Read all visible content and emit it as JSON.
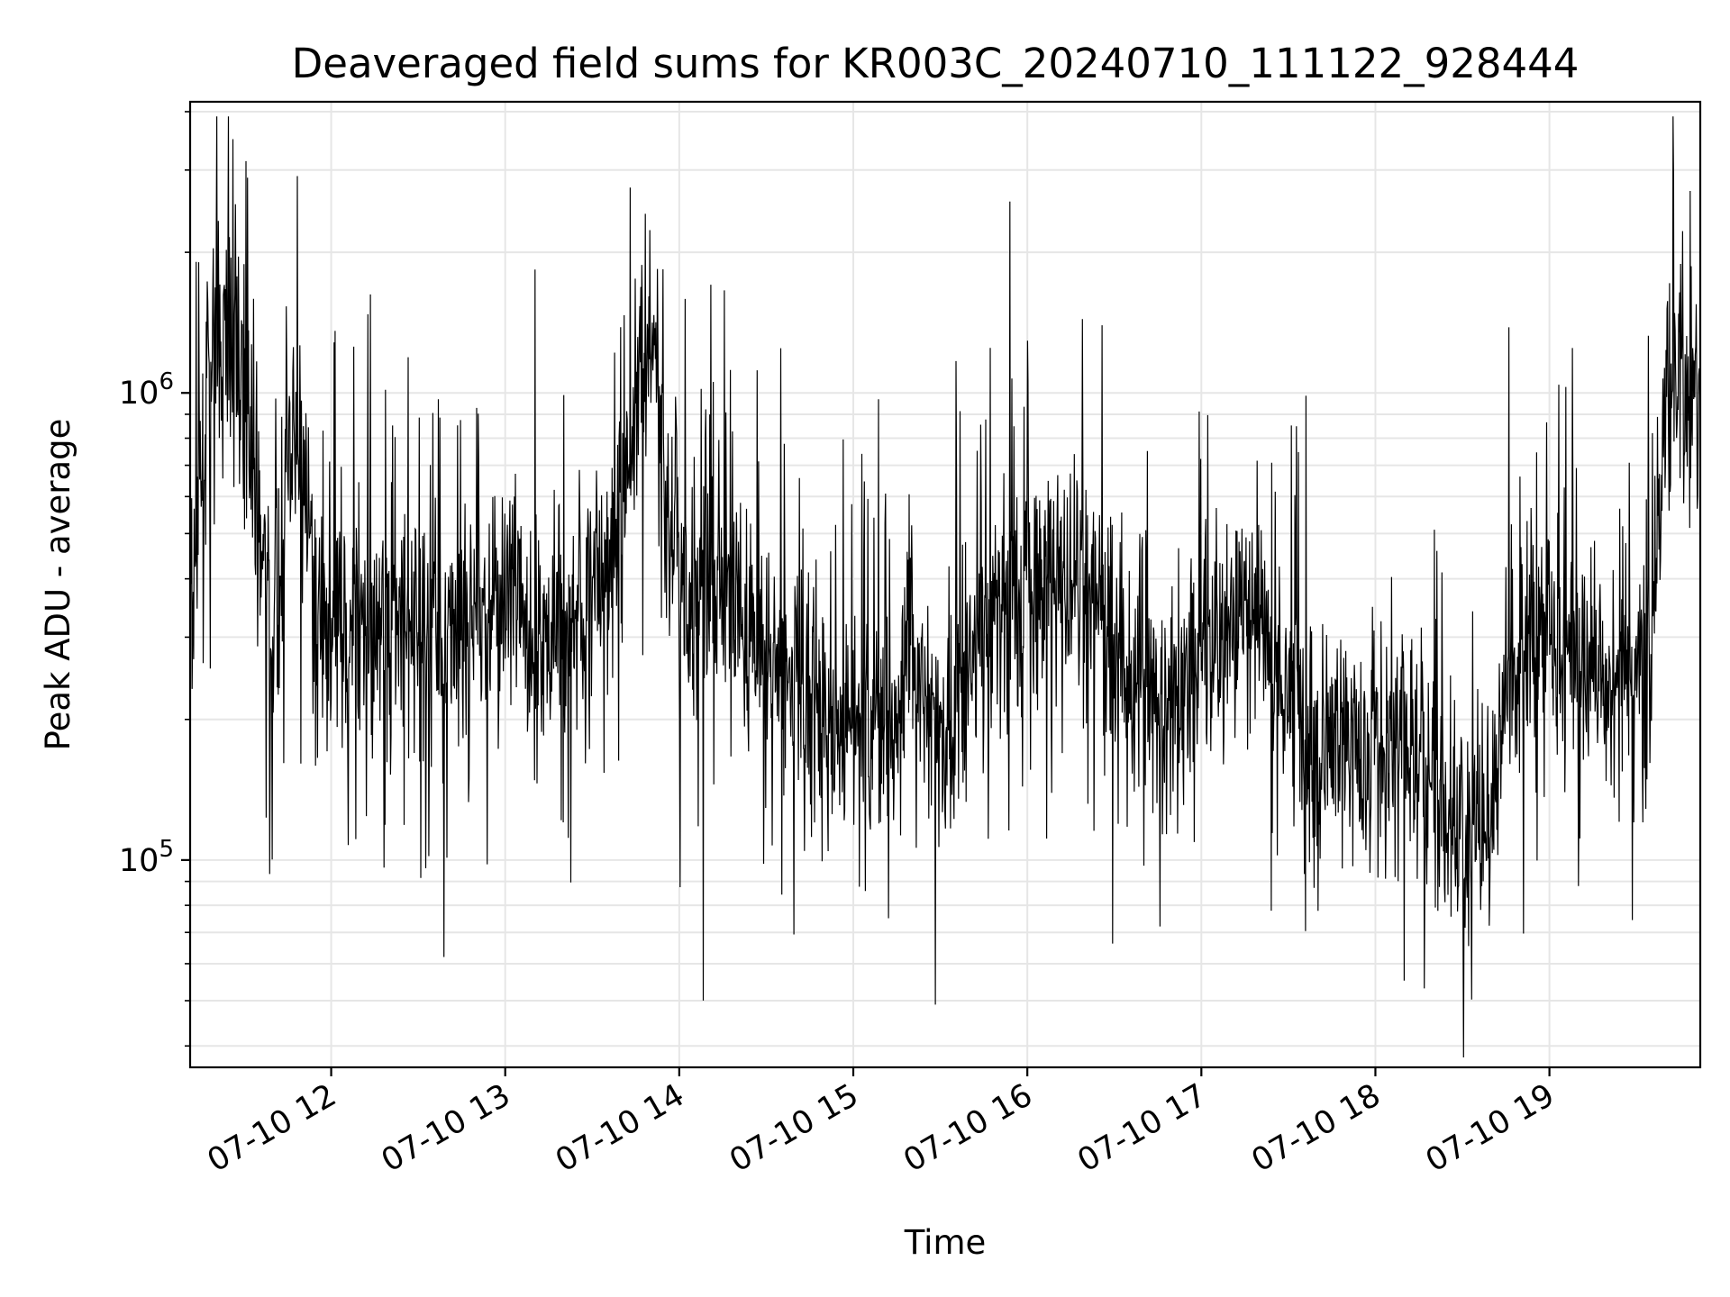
{
  "chart_data": {
    "type": "line",
    "title": "Deaveraged field sums for KR003C_20240710_111122_928444",
    "xlabel": "Time",
    "ylabel": "Peak ADU - average",
    "xaxis": {
      "type": "time",
      "range": [
        "2024-07-10T11:11:22",
        "2024-07-10T19:52:00"
      ],
      "ticks": [
        {
          "value": "2024-07-10T12:00",
          "label": "07-10 12"
        },
        {
          "value": "2024-07-10T13:00",
          "label": "07-10 13"
        },
        {
          "value": "2024-07-10T14:00",
          "label": "07-10 14"
        },
        {
          "value": "2024-07-10T15:00",
          "label": "07-10 15"
        },
        {
          "value": "2024-07-10T16:00",
          "label": "07-10 16"
        },
        {
          "value": "2024-07-10T17:00",
          "label": "07-10 17"
        },
        {
          "value": "2024-07-10T18:00",
          "label": "07-10 18"
        },
        {
          "value": "2024-07-10T19:00",
          "label": "07-10 19"
        }
      ]
    },
    "yaxis": {
      "scale": "log",
      "range": [
        36000,
        4200000
      ],
      "ticks": [
        {
          "value": 100000,
          "base": "10",
          "exp": "5"
        },
        {
          "value": 1000000,
          "base": "10",
          "exp": "6"
        }
      ]
    },
    "grid": true,
    "line_color": "#000000",
    "series": [
      {
        "x": [
          "11:12",
          "11:15",
          "11:20",
          "11:25",
          "11:30",
          "11:35",
          "11:40",
          "11:45",
          "11:50",
          "11:55",
          "12:00",
          "12:10",
          "12:20",
          "12:30",
          "12:40",
          "12:50",
          "13:00",
          "13:10",
          "13:20",
          "13:30",
          "13:40",
          "13:45",
          "13:50",
          "13:55",
          "14:00",
          "14:10",
          "14:20",
          "14:30",
          "14:40",
          "14:50",
          "15:00",
          "15:10",
          "15:20",
          "15:30",
          "15:40",
          "15:50",
          "16:00",
          "16:10",
          "16:20",
          "16:30",
          "16:40",
          "16:50",
          "17:00",
          "17:10",
          "17:20",
          "17:30",
          "17:40",
          "17:50",
          "18:00",
          "18:10",
          "18:20",
          "18:30",
          "18:40",
          "18:50",
          "19:00",
          "19:10",
          "19:20",
          "19:30",
          "19:35",
          "19:40",
          "19:45",
          "19:50"
        ],
        "y": [
          300000,
          700000,
          1100000,
          1300000,
          1100000,
          500000,
          300000,
          600000,
          700000,
          350000,
          280000,
          330000,
          320000,
          300000,
          280000,
          330000,
          380000,
          290000,
          320000,
          380000,
          500000,
          1000000,
          1300000,
          700000,
          400000,
          380000,
          350000,
          280000,
          240000,
          200000,
          180000,
          220000,
          260000,
          180000,
          260000,
          330000,
          380000,
          400000,
          380000,
          280000,
          220000,
          200000,
          280000,
          350000,
          330000,
          240000,
          150000,
          180000,
          160000,
          190000,
          160000,
          110000,
          130000,
          290000,
          330000,
          250000,
          240000,
          220000,
          300000,
          900000,
          1100000,
          1050000
        ]
      }
    ]
  }
}
